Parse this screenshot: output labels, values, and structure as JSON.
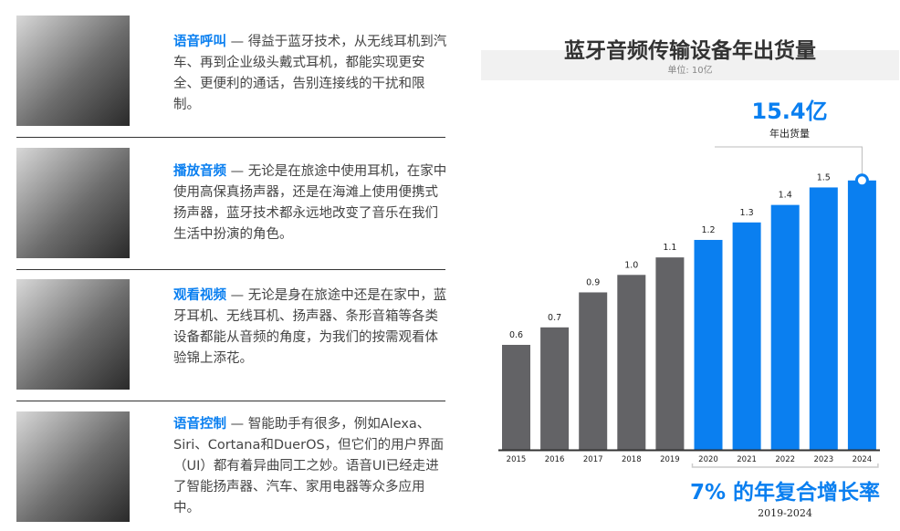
{
  "features": [
    {
      "title": "语音呼叫",
      "text": " — 得益于蓝牙技术，从无线耳机到汽车、再到企业级头戴式耳机，都能实现更安全、更便利的通话，告别连接线的干扰和限制。"
    },
    {
      "title": "播放音频",
      "text": " — 无论是在旅途中使用耳机，在家中使用高保真扬声器，还是在海滩上使用便携式扬声器，蓝牙技术都永远地改变了音乐在我们生活中扮演的角色。"
    },
    {
      "title": "观看视频",
      "text": " — 无论是身在旅途中还是在家中，蓝牙耳机、无线耳机、扬声器、条形音箱等各类设备都能从音频的角度，为我们的按需观看体验锦上添花。"
    },
    {
      "title": "语音控制",
      "text": " — 智能助手有很多，例如Alexa、Siri、Cortana和DuerOS，但它们的用户界面（UI）都有着异曲同工之妙。语音UI已经走进了智能扬声器、汽车、家用电器等众多应用中。"
    }
  ],
  "chart_data": {
    "type": "bar",
    "title": "蓝牙音频传输设备年出货量",
    "subtitle": "单位: 10亿",
    "categories": [
      "2015",
      "2016",
      "2017",
      "2018",
      "2019",
      "2020",
      "2021",
      "2022",
      "2023",
      "2024"
    ],
    "values": [
      0.6,
      0.7,
      0.9,
      1.0,
      1.1,
      1.2,
      1.3,
      1.4,
      1.5,
      1.54
    ],
    "data_labels": [
      "0.6",
      "0.7",
      "0.9",
      "1.0",
      "1.1",
      "1.2",
      "1.3",
      "1.4",
      "1.5",
      ""
    ],
    "ylim": [
      0,
      1.6
    ],
    "colors": [
      "#636366",
      "#636366",
      "#636366",
      "#636366",
      "#636366",
      "#0a7ff0",
      "#0a7ff0",
      "#0a7ff0",
      "#0a7ff0",
      "#0a7ff0"
    ],
    "callout": {
      "value": "15.4亿",
      "label": "年出货量",
      "category": "2024"
    },
    "cagr": {
      "value": "7% 的年复合增长率",
      "period": "2019-2024",
      "range": [
        "2020",
        "2024"
      ]
    },
    "grid": false
  }
}
